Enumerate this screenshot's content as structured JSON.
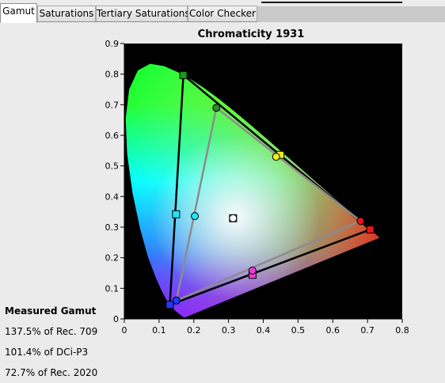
{
  "tabs": [
    {
      "label": "Gamut",
      "active": true
    },
    {
      "label": "Saturations",
      "active": false
    },
    {
      "label": "Tertiary Saturations",
      "active": false
    },
    {
      "label": "Color Checker",
      "active": false
    }
  ],
  "gamut_panel": {
    "heading": "Measured Gamut",
    "stats": [
      "137.5% of Rec. 709",
      "101.4% of DCi-P3",
      "72.7% of Rec. 2020"
    ]
  },
  "chart_data": {
    "type": "scatter",
    "title": "Chromaticity 1931",
    "xlabel": "",
    "ylabel": "",
    "xlim": [
      0,
      0.8
    ],
    "ylim": [
      0,
      0.9
    ],
    "x_ticks": [
      "0",
      "0.1",
      "0.2",
      "0.3",
      "0.4",
      "0.5",
      "0.6",
      "0.7",
      "0.8"
    ],
    "y_ticks": [
      "0",
      "0.1",
      "0.2",
      "0.3",
      "0.4",
      "0.5",
      "0.6",
      "0.7",
      "0.8",
      "0.9"
    ],
    "background": "#000000",
    "grid": false,
    "spectral_locus": [
      [
        0.1741,
        0.005
      ],
      [
        0.1721,
        0.0048
      ],
      [
        0.1714,
        0.0051
      ],
      [
        0.1703,
        0.0058
      ],
      [
        0.1689,
        0.0069
      ],
      [
        0.1669,
        0.0086
      ],
      [
        0.1644,
        0.0109
      ],
      [
        0.1611,
        0.0138
      ],
      [
        0.1566,
        0.0177
      ],
      [
        0.151,
        0.0227
      ],
      [
        0.144,
        0.0297
      ],
      [
        0.1355,
        0.0399
      ],
      [
        0.1241,
        0.0578
      ],
      [
        0.1096,
        0.0868
      ],
      [
        0.0913,
        0.1327
      ],
      [
        0.0687,
        0.2007
      ],
      [
        0.0454,
        0.295
      ],
      [
        0.0235,
        0.4127
      ],
      [
        0.0082,
        0.5384
      ],
      [
        0.0039,
        0.6548
      ],
      [
        0.0139,
        0.7502
      ],
      [
        0.0389,
        0.812
      ],
      [
        0.0743,
        0.8338
      ],
      [
        0.1142,
        0.8262
      ],
      [
        0.1547,
        0.8059
      ],
      [
        0.1929,
        0.7816
      ],
      [
        0.2296,
        0.7543
      ],
      [
        0.2658,
        0.7243
      ],
      [
        0.3016,
        0.6923
      ],
      [
        0.3373,
        0.6589
      ],
      [
        0.3731,
        0.6245
      ],
      [
        0.4087,
        0.5896
      ],
      [
        0.4441,
        0.5547
      ],
      [
        0.4788,
        0.5202
      ],
      [
        0.5125,
        0.4866
      ],
      [
        0.5448,
        0.4544
      ],
      [
        0.5752,
        0.4242
      ],
      [
        0.6029,
        0.3965
      ],
      [
        0.627,
        0.3725
      ],
      [
        0.6482,
        0.3514
      ],
      [
        0.6658,
        0.334
      ],
      [
        0.6801,
        0.3197
      ],
      [
        0.6915,
        0.3083
      ],
      [
        0.7006,
        0.2993
      ],
      [
        0.7079,
        0.292
      ],
      [
        0.714,
        0.2859
      ],
      [
        0.719,
        0.2809
      ],
      [
        0.723,
        0.277
      ],
      [
        0.726,
        0.274
      ],
      [
        0.7283,
        0.2717
      ],
      [
        0.73,
        0.27
      ],
      [
        0.7311,
        0.2689
      ],
      [
        0.732,
        0.268
      ],
      [
        0.7327,
        0.2673
      ],
      [
        0.7334,
        0.2666
      ],
      [
        0.734,
        0.266
      ],
      [
        0.7344,
        0.2656
      ],
      [
        0.7346,
        0.2654
      ],
      [
        0.7347,
        0.2653
      ]
    ],
    "series": [
      {
        "role": "outer-gamut",
        "points": [
          [
            0.708,
            0.292
          ],
          [
            0.17,
            0.797
          ],
          [
            0.131,
            0.046
          ]
        ],
        "line_color": "#000000",
        "marker": "square"
      },
      {
        "role": "inner-gamut",
        "points": [
          [
            0.68,
            0.32
          ],
          [
            0.265,
            0.69
          ],
          [
            0.15,
            0.06
          ]
        ],
        "line_color": "#8c8c8c",
        "marker": "circle"
      }
    ],
    "points": [
      {
        "x": 0.708,
        "y": 0.292,
        "marker": "square",
        "color": "#e8141b"
      },
      {
        "x": 0.17,
        "y": 0.797,
        "marker": "square",
        "color": "#1a9a1a"
      },
      {
        "x": 0.131,
        "y": 0.046,
        "marker": "square",
        "color": "#1d3cff"
      },
      {
        "x": 0.149,
        "y": 0.342,
        "marker": "square",
        "color": "#20e6f5"
      },
      {
        "x": 0.449,
        "y": 0.536,
        "marker": "square",
        "color": "#f2ee20"
      },
      {
        "x": 0.369,
        "y": 0.144,
        "marker": "square",
        "color": "#e83fd5"
      },
      {
        "x": 0.68,
        "y": 0.32,
        "marker": "circle",
        "color": "#e8141b"
      },
      {
        "x": 0.265,
        "y": 0.69,
        "marker": "circle",
        "color": "#2e8b2e"
      },
      {
        "x": 0.15,
        "y": 0.06,
        "marker": "circle",
        "color": "#1d3cff"
      },
      {
        "x": 0.203,
        "y": 0.336,
        "marker": "circle",
        "color": "#20e6f5"
      },
      {
        "x": 0.437,
        "y": 0.53,
        "marker": "circle",
        "color": "#f2ee20"
      },
      {
        "x": 0.369,
        "y": 0.158,
        "marker": "circle",
        "color": "#e83fd5"
      },
      {
        "x": 0.313,
        "y": 0.329,
        "marker": "square",
        "color": "#e6e6e6"
      },
      {
        "x": 0.313,
        "y": 0.329,
        "marker": "circle",
        "color": "#ffffff"
      }
    ]
  }
}
